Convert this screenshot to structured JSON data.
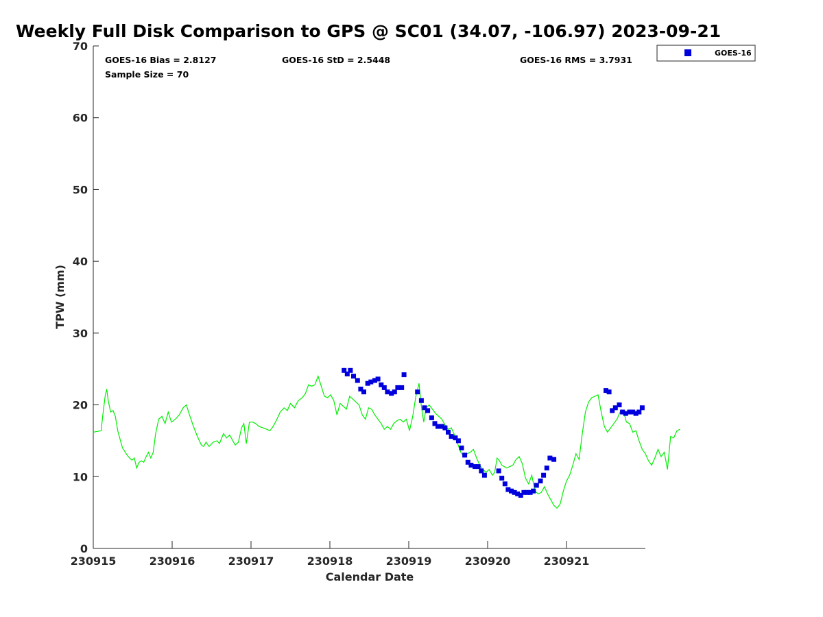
{
  "chart_data": {
    "type": "scatter",
    "title": "Weekly Full Disk Comparison to GPS @ SC01 (34.07, -106.97) 2023-09-21",
    "xlabel": "Calendar Date",
    "ylabel": "TPW (mm)",
    "xlim": [
      0,
      7
    ],
    "ylim": [
      0,
      70
    ],
    "x_ticks": [
      0,
      1,
      2,
      3,
      4,
      5,
      6
    ],
    "x_tick_labels": [
      "230915",
      "230916",
      "230917",
      "230918",
      "230919",
      "230920",
      "230921"
    ],
    "y_ticks": [
      0,
      10,
      20,
      30,
      40,
      50,
      60,
      70
    ],
    "y_tick_labels": [
      "0",
      "10",
      "20",
      "30",
      "40",
      "50",
      "60",
      "70"
    ],
    "grid": false,
    "legend": {
      "position": "outside-top-right",
      "label": "GOES-16"
    },
    "stats": {
      "bias": "GOES-16 Bias = 2.8127",
      "std": "GOES-16 StD = 2.5448",
      "rms": "GOES-16 RMS = 3.7931",
      "sample": "Sample Size = 70"
    },
    "colors": {
      "goes": "#0000dd",
      "gps": "#00ee00"
    },
    "series": [
      {
        "name": "GOES-16",
        "marker": "square",
        "points": [
          [
            3.18,
            24.8
          ],
          [
            3.22,
            24.3
          ],
          [
            3.26,
            24.8
          ],
          [
            3.3,
            24.0
          ],
          [
            3.35,
            23.4
          ],
          [
            3.39,
            22.2
          ],
          [
            3.43,
            21.8
          ],
          [
            3.48,
            23.0
          ],
          [
            3.52,
            23.2
          ],
          [
            3.57,
            23.4
          ],
          [
            3.61,
            23.6
          ],
          [
            3.65,
            22.8
          ],
          [
            3.69,
            22.4
          ],
          [
            3.73,
            21.8
          ],
          [
            3.78,
            21.6
          ],
          [
            3.82,
            21.8
          ],
          [
            3.86,
            22.4
          ],
          [
            3.91,
            22.4
          ],
          [
            3.94,
            24.2
          ],
          [
            4.11,
            21.8
          ],
          [
            4.16,
            20.6
          ],
          [
            4.2,
            19.6
          ],
          [
            4.24,
            19.2
          ],
          [
            4.29,
            18.2
          ],
          [
            4.33,
            17.4
          ],
          [
            4.37,
            17.0
          ],
          [
            4.42,
            17.0
          ],
          [
            4.46,
            16.8
          ],
          [
            4.5,
            16.2
          ],
          [
            4.54,
            15.6
          ],
          [
            4.59,
            15.4
          ],
          [
            4.63,
            15.0
          ],
          [
            4.67,
            14.0
          ],
          [
            4.71,
            13.0
          ],
          [
            4.75,
            12.0
          ],
          [
            4.79,
            11.6
          ],
          [
            4.84,
            11.4
          ],
          [
            4.88,
            11.4
          ],
          [
            4.92,
            10.8
          ],
          [
            4.96,
            10.2
          ],
          [
            5.14,
            10.8
          ],
          [
            5.18,
            9.8
          ],
          [
            5.22,
            9.0
          ],
          [
            5.26,
            8.2
          ],
          [
            5.3,
            8.0
          ],
          [
            5.34,
            7.8
          ],
          [
            5.38,
            7.6
          ],
          [
            5.42,
            7.4
          ],
          [
            5.46,
            7.8
          ],
          [
            5.5,
            7.8
          ],
          [
            5.54,
            7.8
          ],
          [
            5.58,
            8.0
          ],
          [
            5.62,
            8.8
          ],
          [
            5.67,
            9.4
          ],
          [
            5.71,
            10.2
          ],
          [
            5.75,
            11.2
          ],
          [
            5.79,
            12.6
          ],
          [
            5.84,
            12.4
          ],
          [
            6.5,
            22.0
          ],
          [
            6.54,
            21.8
          ],
          [
            6.58,
            19.2
          ],
          [
            6.62,
            19.6
          ],
          [
            6.67,
            20.0
          ],
          [
            6.71,
            19.0
          ],
          [
            6.75,
            18.8
          ],
          [
            6.8,
            19.0
          ],
          [
            6.84,
            19.0
          ],
          [
            6.88,
            18.8
          ],
          [
            6.92,
            19.0
          ],
          [
            6.96,
            19.6
          ]
        ]
      },
      {
        "name": "GPS",
        "type": "line",
        "points": [
          [
            0.0,
            16.2
          ],
          [
            0.05,
            16.3
          ],
          [
            0.1,
            16.4
          ],
          [
            0.12,
            18.5
          ],
          [
            0.15,
            21.2
          ],
          [
            0.17,
            22.2
          ],
          [
            0.19,
            20.6
          ],
          [
            0.22,
            19.0
          ],
          [
            0.25,
            19.2
          ],
          [
            0.28,
            18.4
          ],
          [
            0.31,
            16.4
          ],
          [
            0.34,
            15.2
          ],
          [
            0.37,
            14.0
          ],
          [
            0.4,
            13.5
          ],
          [
            0.43,
            13.0
          ],
          [
            0.46,
            12.6
          ],
          [
            0.49,
            12.3
          ],
          [
            0.52,
            12.6
          ],
          [
            0.55,
            11.2
          ],
          [
            0.58,
            12.0
          ],
          [
            0.61,
            12.2
          ],
          [
            0.64,
            12.0
          ],
          [
            0.67,
            12.8
          ],
          [
            0.7,
            13.4
          ],
          [
            0.73,
            12.6
          ],
          [
            0.76,
            13.4
          ],
          [
            0.79,
            16.0
          ],
          [
            0.83,
            18.0
          ],
          [
            0.87,
            18.4
          ],
          [
            0.91,
            17.4
          ],
          [
            0.95,
            19.0
          ],
          [
            0.99,
            17.6
          ],
          [
            1.04,
            18.0
          ],
          [
            1.09,
            18.6
          ],
          [
            1.14,
            19.6
          ],
          [
            1.18,
            20.0
          ],
          [
            1.22,
            18.6
          ],
          [
            1.27,
            17.0
          ],
          [
            1.32,
            15.6
          ],
          [
            1.37,
            14.4
          ],
          [
            1.4,
            14.2
          ],
          [
            1.43,
            14.8
          ],
          [
            1.47,
            14.2
          ],
          [
            1.52,
            14.8
          ],
          [
            1.57,
            15.0
          ],
          [
            1.6,
            14.6
          ],
          [
            1.65,
            16.0
          ],
          [
            1.69,
            15.4
          ],
          [
            1.73,
            15.8
          ],
          [
            1.77,
            15.0
          ],
          [
            1.8,
            14.4
          ],
          [
            1.84,
            14.8
          ],
          [
            1.88,
            16.8
          ],
          [
            1.91,
            17.4
          ],
          [
            1.94,
            14.6
          ],
          [
            1.98,
            17.6
          ],
          [
            2.02,
            17.6
          ],
          [
            2.06,
            17.4
          ],
          [
            2.1,
            17.0
          ],
          [
            2.15,
            16.8
          ],
          [
            2.2,
            16.6
          ],
          [
            2.24,
            16.4
          ],
          [
            2.28,
            17.0
          ],
          [
            2.32,
            17.8
          ],
          [
            2.37,
            19.0
          ],
          [
            2.42,
            19.6
          ],
          [
            2.46,
            19.2
          ],
          [
            2.5,
            20.2
          ],
          [
            2.55,
            19.6
          ],
          [
            2.6,
            20.6
          ],
          [
            2.65,
            21.0
          ],
          [
            2.69,
            21.6
          ],
          [
            2.73,
            22.8
          ],
          [
            2.77,
            22.6
          ],
          [
            2.81,
            22.8
          ],
          [
            2.85,
            24.0
          ],
          [
            2.89,
            22.6
          ],
          [
            2.93,
            21.2
          ],
          [
            2.97,
            21.0
          ],
          [
            3.01,
            21.4
          ],
          [
            3.05,
            20.6
          ],
          [
            3.09,
            18.6
          ],
          [
            3.13,
            20.2
          ],
          [
            3.17,
            19.8
          ],
          [
            3.21,
            19.4
          ],
          [
            3.25,
            21.2
          ],
          [
            3.29,
            20.8
          ],
          [
            3.33,
            20.4
          ],
          [
            3.37,
            20.0
          ],
          [
            3.41,
            18.6
          ],
          [
            3.45,
            18.0
          ],
          [
            3.49,
            19.6
          ],
          [
            3.53,
            19.4
          ],
          [
            3.57,
            18.6
          ],
          [
            3.61,
            18.0
          ],
          [
            3.65,
            17.4
          ],
          [
            3.69,
            16.6
          ],
          [
            3.73,
            17.0
          ],
          [
            3.77,
            16.6
          ],
          [
            3.81,
            17.4
          ],
          [
            3.85,
            17.8
          ],
          [
            3.89,
            18.0
          ],
          [
            3.93,
            17.6
          ],
          [
            3.97,
            18.0
          ],
          [
            4.01,
            16.4
          ],
          [
            4.05,
            18.4
          ],
          [
            4.09,
            21.2
          ],
          [
            4.13,
            23.0
          ],
          [
            4.16,
            19.8
          ],
          [
            4.19,
            17.6
          ],
          [
            4.22,
            19.6
          ],
          [
            4.26,
            20.0
          ],
          [
            4.3,
            19.4
          ],
          [
            4.34,
            18.8
          ],
          [
            4.38,
            18.4
          ],
          [
            4.42,
            18.0
          ],
          [
            4.46,
            17.2
          ],
          [
            4.5,
            16.6
          ],
          [
            4.54,
            16.8
          ],
          [
            4.58,
            15.8
          ],
          [
            4.62,
            14.6
          ],
          [
            4.66,
            13.4
          ],
          [
            4.7,
            12.8
          ],
          [
            4.74,
            13.2
          ],
          [
            4.78,
            13.4
          ],
          [
            4.82,
            13.8
          ],
          [
            4.86,
            12.6
          ],
          [
            4.9,
            11.6
          ],
          [
            4.94,
            11.0
          ],
          [
            4.98,
            10.6
          ],
          [
            5.02,
            11.0
          ],
          [
            5.06,
            10.2
          ],
          [
            5.09,
            10.6
          ],
          [
            5.12,
            12.6
          ],
          [
            5.15,
            12.2
          ],
          [
            5.18,
            11.6
          ],
          [
            5.21,
            11.4
          ],
          [
            5.24,
            11.2
          ],
          [
            5.28,
            11.4
          ],
          [
            5.32,
            11.6
          ],
          [
            5.36,
            12.4
          ],
          [
            5.4,
            12.8
          ],
          [
            5.44,
            11.8
          ],
          [
            5.48,
            9.8
          ],
          [
            5.52,
            9.0
          ],
          [
            5.56,
            10.2
          ],
          [
            5.6,
            8.0
          ],
          [
            5.64,
            7.6
          ],
          [
            5.68,
            7.8
          ],
          [
            5.72,
            8.6
          ],
          [
            5.76,
            7.6
          ],
          [
            5.8,
            6.8
          ],
          [
            5.84,
            6.0
          ],
          [
            5.88,
            5.6
          ],
          [
            5.92,
            6.2
          ],
          [
            5.96,
            8.0
          ],
          [
            6.0,
            9.4
          ],
          [
            6.04,
            10.2
          ],
          [
            6.08,
            11.6
          ],
          [
            6.12,
            13.2
          ],
          [
            6.16,
            12.4
          ],
          [
            6.2,
            16.0
          ],
          [
            6.24,
            19.0
          ],
          [
            6.28,
            20.4
          ],
          [
            6.32,
            21.0
          ],
          [
            6.36,
            21.2
          ],
          [
            6.4,
            21.4
          ],
          [
            6.44,
            19.0
          ],
          [
            6.48,
            17.0
          ],
          [
            6.52,
            16.2
          ],
          [
            6.56,
            16.8
          ],
          [
            6.6,
            17.4
          ],
          [
            6.64,
            18.0
          ],
          [
            6.68,
            19.0
          ],
          [
            6.72,
            19.2
          ],
          [
            6.76,
            17.6
          ],
          [
            6.8,
            17.4
          ],
          [
            6.84,
            16.2
          ],
          [
            6.88,
            16.4
          ],
          [
            6.92,
            15.0
          ],
          [
            6.96,
            13.8
          ],
          [
            7.0,
            13.2
          ],
          [
            7.04,
            12.2
          ],
          [
            7.08,
            11.6
          ],
          [
            7.12,
            12.6
          ],
          [
            7.16,
            13.8
          ],
          [
            7.2,
            12.8
          ],
          [
            7.24,
            13.4
          ],
          [
            7.28,
            11.0
          ],
          [
            7.32,
            15.6
          ],
          [
            7.36,
            15.4
          ],
          [
            7.4,
            16.4
          ],
          [
            7.44,
            16.6
          ]
        ]
      }
    ]
  }
}
